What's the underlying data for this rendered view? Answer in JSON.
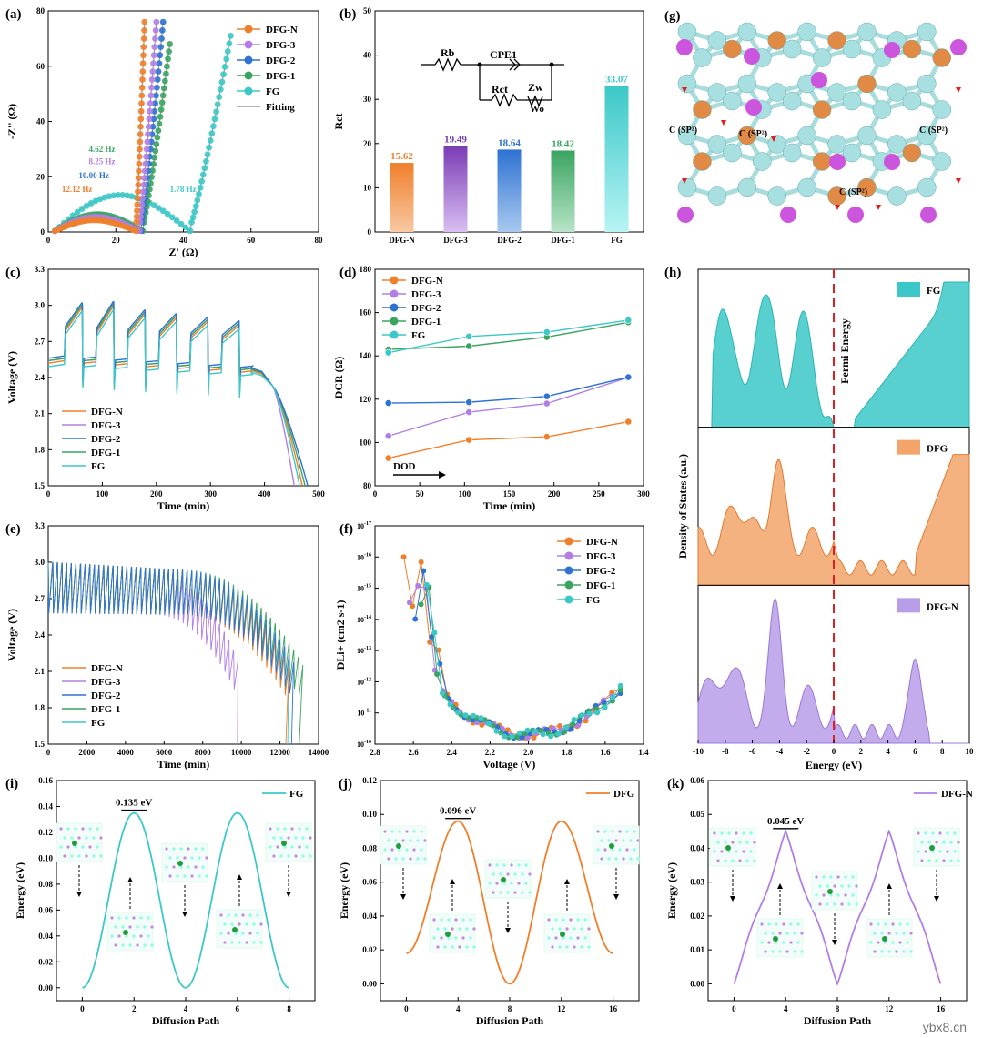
{
  "colors": {
    "DFG-N": "#f07f2a",
    "DFG-3": "#b27ee6",
    "DFG-2": "#2e72d2",
    "DFG-1": "#3aa460",
    "FG": "#3cc8c8",
    "Fitting": "#999999",
    "fermi": "#e02020"
  },
  "watermark": "ybx8.cn",
  "chart_data": [
    {
      "id": "a",
      "panel": "(a)",
      "type": "scatter",
      "xlabel": "Z' (Ω)",
      "ylabel": "-Z'' (Ω)",
      "xlim": [
        0,
        80
      ],
      "ylim": [
        0,
        80
      ],
      "xticks": [
        0,
        20,
        40,
        60,
        80
      ],
      "yticks": [
        0,
        20,
        40,
        60,
        80
      ],
      "legend": [
        "DFG-N",
        "DFG-3",
        "DFG-2",
        "DFG-1",
        "FG",
        "Fitting"
      ],
      "legend_position": "top-right",
      "series": [
        {
          "name": "DFG-N",
          "arc_start": 2,
          "arc_end": 26,
          "arc_height": 4.2,
          "tail_start": 26,
          "tail_end": 28.5,
          "tail_top": 76
        },
        {
          "name": "DFG-3",
          "arc_start": 2,
          "arc_end": 27,
          "arc_height": 5.5,
          "tail_start": 27,
          "tail_end": 32,
          "tail_top": 76
        },
        {
          "name": "DFG-2",
          "arc_start": 2,
          "arc_end": 27.5,
          "arc_height": 5.0,
          "tail_start": 27.5,
          "tail_end": 34,
          "tail_top": 76
        },
        {
          "name": "DFG-1",
          "arc_start": 2,
          "arc_end": 28,
          "arc_height": 6.5,
          "tail_start": 28,
          "tail_end": 36,
          "tail_top": 68
        },
        {
          "name": "FG",
          "arc_start": 2,
          "arc_end": 42,
          "arc_height": 14,
          "tail_start": 42,
          "tail_end": 54,
          "tail_top": 71
        }
      ],
      "annotations": [
        {
          "text": "4.62 Hz",
          "series": "DFG-1",
          "x": 12,
          "y": 29
        },
        {
          "text": "8.25 Hz",
          "series": "DFG-3",
          "x": 12,
          "y": 24.5
        },
        {
          "text": "10.00 Hz",
          "series": "DFG-2",
          "x": 9,
          "y": 19.5
        },
        {
          "text": "12.12 Hz",
          "series": "DFG-N",
          "x": 4,
          "y": 14.5
        },
        {
          "text": "1.78 Hz",
          "series": "FG",
          "x": 36,
          "y": 14.5
        }
      ]
    },
    {
      "id": "b",
      "panel": "(b)",
      "type": "bar",
      "ylabel": "Rct",
      "xlabel": "",
      "ylim": [
        0,
        50
      ],
      "yticks": [
        0,
        10,
        20,
        30,
        40,
        50
      ],
      "categories": [
        "DFG-N",
        "DFG-3",
        "DFG-2",
        "DFG-1",
        "FG"
      ],
      "values": [
        15.62,
        19.49,
        18.64,
        18.42,
        33.07
      ],
      "value_labels": [
        "15.62",
        "19.49",
        "18.64",
        "18.42",
        "33.07"
      ],
      "circuit_labels": {
        "rb": "Rb",
        "cpe": "CPE1",
        "rct": "Rct",
        "zw": "Zw",
        "wo": "Wo"
      }
    },
    {
      "id": "c",
      "panel": "(c)",
      "type": "line",
      "xlabel": "Time (min)",
      "ylabel": "Voltage (V)",
      "xlim": [
        0,
        500
      ],
      "ylim": [
        1.5,
        3.3
      ],
      "xticks": [
        0,
        100,
        200,
        300,
        400,
        500
      ],
      "yticks": [
        1.5,
        1.8,
        2.1,
        2.4,
        2.7,
        3.0,
        3.3
      ],
      "legend": [
        "DFG-N",
        "DFG-3",
        "DFG-2",
        "DFG-1",
        "FG"
      ],
      "legend_position": "bottom-left",
      "pulse_count": 6,
      "end_times": {
        "DFG-N": 470,
        "DFG-3": 455,
        "DFG-2": 480,
        "DFG-1": 475,
        "FG": 465
      }
    },
    {
      "id": "d",
      "panel": "(d)",
      "type": "line",
      "xlabel": "Time (min)",
      "ylabel": "DCR (Ω)",
      "xlim": [
        0,
        300
      ],
      "ylim": [
        80,
        180
      ],
      "xticks": [
        0,
        50,
        100,
        150,
        200,
        250,
        300
      ],
      "yticks": [
        80,
        100,
        120,
        140,
        160,
        180
      ],
      "legend": [
        "DFG-N",
        "DFG-3",
        "DFG-2",
        "DFG-1",
        "FG"
      ],
      "legend_position": "top-left",
      "arrow_label": "DOD",
      "x": [
        15,
        105,
        192,
        283
      ],
      "series": [
        {
          "name": "DFG-N",
          "values": [
            92.8,
            101.2,
            102.6,
            109.6
          ]
        },
        {
          "name": "DFG-3",
          "values": [
            103.0,
            114.0,
            118.0,
            130.0
          ]
        },
        {
          "name": "DFG-2",
          "values": [
            118.2,
            118.6,
            121.3,
            130.2
          ]
        },
        {
          "name": "DFG-1",
          "values": [
            143.0,
            144.5,
            148.7,
            155.5
          ]
        },
        {
          "name": "FG",
          "values": [
            141.5,
            149.0,
            151.0,
            156.5
          ]
        }
      ]
    },
    {
      "id": "e",
      "panel": "(e)",
      "type": "line",
      "xlabel": "Time (min)",
      "ylabel": "Voltage (V)",
      "xlim": [
        0,
        14000
      ],
      "ylim": [
        1.5,
        3.3
      ],
      "xticks": [
        0,
        2000,
        4000,
        6000,
        8000,
        10000,
        12000,
        14000
      ],
      "yticks": [
        1.5,
        1.8,
        2.1,
        2.4,
        2.7,
        3.0,
        3.3
      ],
      "legend": [
        "DFG-N",
        "DFG-3",
        "DFG-2",
        "DFG-1",
        "FG"
      ],
      "legend_position": "bottom-left",
      "end_times": {
        "DFG-N": 12300,
        "DFG-3": 9800,
        "DFG-2": 12600,
        "DFG-1": 13000,
        "FG": 12400
      }
    },
    {
      "id": "f",
      "panel": "(f)",
      "type": "scatter",
      "xlabel": "Voltage (V)",
      "ylabel": "DLi+ (cm2 s-1)",
      "xlim": [
        2.8,
        1.4
      ],
      "log_y": true,
      "ylim_exp": [
        -10,
        -17
      ],
      "xticks": [
        2.8,
        2.6,
        2.4,
        2.2,
        2.0,
        1.8,
        1.6,
        1.4
      ],
      "yticks_exp": [
        -10,
        -11,
        -12,
        -13,
        -14,
        -15,
        -16,
        -17
      ],
      "legend": [
        "DFG-N",
        "DFG-3",
        "DFG-2",
        "DFG-1",
        "FG"
      ],
      "legend_position": "top-right"
    },
    {
      "id": "h",
      "panel": "(h)",
      "type": "area",
      "xlabel": "Energy (eV)",
      "ylabel": "Density of States (a.u.)",
      "xlim": [
        -10,
        10
      ],
      "xticks": [
        -10,
        -8,
        -6,
        -4,
        -2,
        0,
        2,
        4,
        6,
        8,
        10
      ],
      "fermi_label": "Fermi Energy",
      "series": [
        {
          "name": "FG",
          "label": "FG"
        },
        {
          "name": "DFG",
          "label": "DFG"
        },
        {
          "name": "DFG-N",
          "label": "DFG-N"
        }
      ]
    },
    {
      "id": "i",
      "panel": "(i)",
      "type": "line",
      "xlabel": "Diffusion Path",
      "ylabel": "Energy (eV)",
      "xlim": [
        -1,
        9
      ],
      "ylim": [
        -0.01,
        0.16
      ],
      "xticks": [
        0,
        2,
        4,
        6,
        8
      ],
      "yticks": [
        0.0,
        0.02,
        0.04,
        0.06,
        0.08,
        0.1,
        0.12,
        0.14,
        0.16
      ],
      "ytick_labels": [
        "0.00",
        "0.02",
        "0.04",
        "0.06",
        "0.08",
        "0.10",
        "0.12",
        "0.14",
        "0.16"
      ],
      "legend": "FG",
      "series_color": "FG",
      "barrier_label": "0.135 eV",
      "barrier": 0.135,
      "period": 4
    },
    {
      "id": "j",
      "panel": "(j)",
      "type": "line",
      "xlabel": "Diffusion Path",
      "ylabel": "Energy (eV)",
      "xlim": [
        -2,
        18
      ],
      "ylim": [
        -0.01,
        0.12
      ],
      "xticks": [
        0,
        4,
        8,
        12,
        16
      ],
      "yticks": [
        0.0,
        0.02,
        0.04,
        0.06,
        0.08,
        0.1,
        0.12
      ],
      "ytick_labels": [
        "0.00",
        "0.02",
        "0.04",
        "0.06",
        "0.08",
        "0.10",
        "0.12"
      ],
      "legend": "DFG",
      "series_color": "DFG-N",
      "barrier_label": "0.096 eV",
      "barrier": 0.096,
      "start_energy": 0.018
    },
    {
      "id": "k",
      "panel": "(k)",
      "type": "line",
      "xlabel": "Diffusion Path",
      "ylabel": "Energy (eV)",
      "xlim": [
        -2,
        18
      ],
      "ylim": [
        -0.005,
        0.06
      ],
      "xticks": [
        0,
        4,
        8,
        12,
        16
      ],
      "yticks": [
        0.0,
        0.01,
        0.02,
        0.03,
        0.04,
        0.05,
        0.06
      ],
      "ytick_labels": [
        "0.00",
        "0.01",
        "0.02",
        "0.03",
        "0.04",
        "0.05",
        "0.06"
      ],
      "legend": "DFG-N",
      "series_color": "DFG-3",
      "barrier_label": "0.045 eV",
      "barrier": 0.045
    }
  ],
  "structure_g": {
    "panel": "(g)",
    "labels": [
      "C (SP²)",
      "C (SP²)",
      "C (SP²)",
      "C (SP²)"
    ]
  }
}
